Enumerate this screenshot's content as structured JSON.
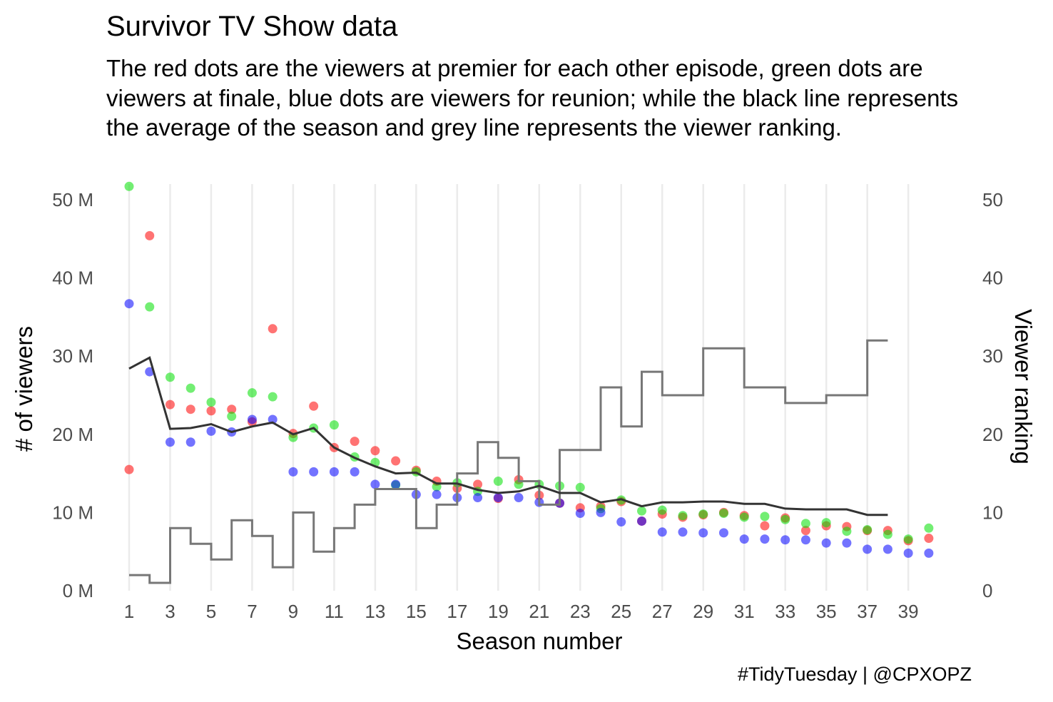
{
  "chart_data": {
    "type": "scatter",
    "title": "Survivor TV Show data",
    "subtitle": "The red dots are the viewers at premier for each other episode, green dots are viewers at finale, blue dots are viewers for reunion; while the black line represents the average of the season and grey line represents the viewer ranking.",
    "caption": "#TidyTuesday | @CPXOPZ",
    "xlabel": "Season number",
    "ylabel": "# of viewers",
    "ylabel_right": "Viewer ranking",
    "xlim": [
      0.2,
      40.7
    ],
    "ylim": [
      0,
      52
    ],
    "ylim_right": [
      0,
      52
    ],
    "x_ticks": [
      1,
      3,
      5,
      7,
      9,
      11,
      13,
      15,
      17,
      19,
      21,
      23,
      25,
      27,
      29,
      31,
      33,
      35,
      37,
      39
    ],
    "y_ticks": [
      0,
      10,
      20,
      30,
      40,
      50
    ],
    "y_tick_labels": [
      "0 M",
      "10 M",
      "20 M",
      "30 M",
      "40 M",
      "50 M"
    ],
    "y_right_ticks": [
      0,
      10,
      20,
      30,
      40,
      50
    ],
    "y_right_tick_labels": [
      "0",
      "10",
      "20",
      "30",
      "40",
      "50"
    ],
    "grid": "vertical major lines only",
    "x": [
      1,
      2,
      3,
      4,
      5,
      6,
      7,
      8,
      9,
      10,
      11,
      12,
      13,
      14,
      15,
      16,
      17,
      18,
      19,
      20,
      21,
      22,
      23,
      24,
      25,
      26,
      27,
      28,
      29,
      30,
      31,
      32,
      33,
      34,
      35,
      36,
      37,
      38,
      39,
      40
    ],
    "series": [
      {
        "color": "#ff0000",
        "values": [
          15.5,
          45.4,
          23.8,
          23.2,
          23.0,
          23.2,
          21.6,
          33.5,
          20.1,
          23.6,
          18.3,
          19.1,
          17.9,
          16.6,
          15.4,
          14.0,
          13.1,
          13.6,
          11.8,
          14.2,
          12.2,
          11.2,
          10.6,
          10.8,
          11.4,
          8.9,
          9.8,
          9.4,
          9.7,
          10.0,
          9.6,
          8.3,
          9.3,
          7.7,
          8.3,
          8.2,
          7.7,
          7.7,
          6.4,
          6.7
        ]
      },
      {
        "color": "#00e000",
        "values": [
          51.7,
          36.3,
          27.3,
          25.9,
          24.1,
          22.3,
          25.3,
          24.8,
          19.6,
          20.8,
          21.2,
          17.1,
          16.4,
          13.5,
          15.2,
          13.3,
          13.8,
          12.7,
          14.0,
          13.6,
          13.6,
          13.4,
          13.2,
          10.5,
          11.6,
          10.2,
          10.3,
          9.6,
          9.8,
          9.9,
          9.4,
          9.5,
          9.1,
          8.6,
          8.7,
          7.6,
          7.8,
          7.2,
          6.6,
          8.0
        ]
      },
      {
        "color": "#0000ff",
        "values": [
          36.7,
          28.0,
          19.0,
          19.0,
          20.4,
          20.3,
          21.9,
          21.9,
          15.2,
          15.2,
          15.2,
          15.2,
          13.6,
          13.6,
          12.3,
          12.3,
          11.9,
          11.9,
          11.9,
          11.9,
          11.3,
          11.2,
          9.9,
          10.0,
          8.8,
          8.9,
          7.5,
          7.5,
          7.4,
          7.4,
          6.6,
          6.6,
          6.5,
          6.5,
          6.1,
          6.1,
          5.3,
          5.3,
          4.8,
          4.8
        ]
      }
    ],
    "average_line": {
      "color": "#333333",
      "values": [
        28.4,
        29.8,
        20.7,
        20.8,
        21.3,
        20.3,
        21.0,
        21.5,
        20.0,
        20.8,
        18.3,
        17.0,
        15.9,
        15.0,
        15.1,
        13.7,
        13.7,
        12.9,
        12.5,
        12.7,
        13.4,
        12.5,
        12.5,
        11.3,
        11.7,
        10.8,
        11.3,
        11.3,
        11.4,
        11.4,
        11.1,
        11.1,
        10.5,
        10.4,
        10.4,
        10.4,
        9.7,
        9.7
      ]
    },
    "ranking_step": {
      "color": "#777777",
      "values": [
        2,
        1,
        8,
        6,
        4,
        9,
        7,
        3,
        10,
        5,
        8,
        11,
        13,
        13,
        8,
        11,
        15,
        19,
        17,
        14,
        11,
        18,
        18,
        26,
        21,
        28,
        25,
        25,
        31,
        31,
        26,
        26,
        24,
        24,
        25,
        25,
        32,
        32
      ]
    }
  }
}
